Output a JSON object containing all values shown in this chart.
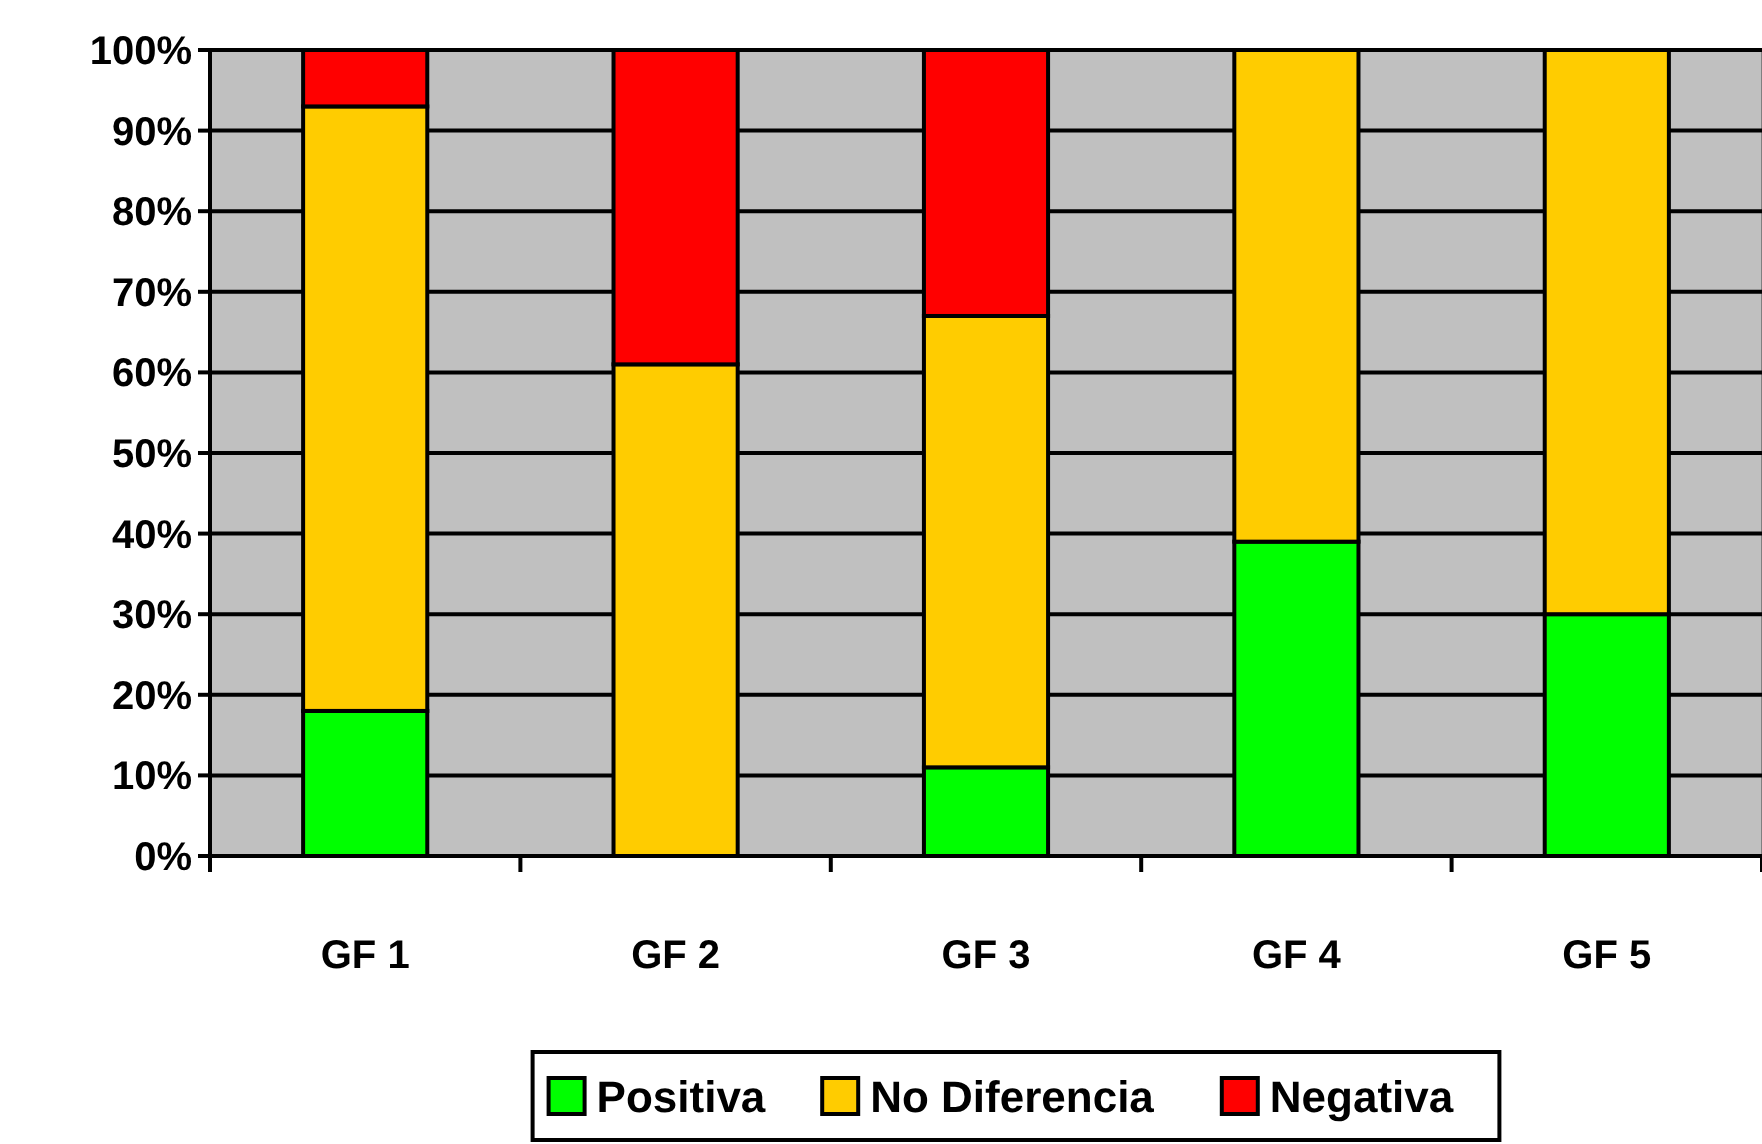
{
  "chart_data": {
    "type": "bar",
    "stacked": true,
    "categories": [
      "GF 1",
      "GF 2",
      "GF 3",
      "GF 4",
      "GF 5"
    ],
    "series": [
      {
        "name": "Positiva",
        "color": "#00ff00",
        "values": [
          18,
          0,
          11,
          39,
          30
        ]
      },
      {
        "name": "No Diferencia",
        "color": "#ffcc00",
        "values": [
          75,
          61,
          56,
          61,
          70
        ]
      },
      {
        "name": "Negativa",
        "color": "#ff0000",
        "values": [
          7,
          39,
          33,
          0,
          0
        ]
      }
    ],
    "ylim": [
      0,
      100
    ],
    "yticks": [
      {
        "value": 0,
        "label": "0%"
      },
      {
        "value": 10,
        "label": "10%"
      },
      {
        "value": 20,
        "label": "20%"
      },
      {
        "value": 30,
        "label": "30%"
      },
      {
        "value": 40,
        "label": "40%"
      },
      {
        "value": 50,
        "label": "50%"
      },
      {
        "value": 60,
        "label": "60%"
      },
      {
        "value": 70,
        "label": "70%"
      },
      {
        "value": 80,
        "label": "80%"
      },
      {
        "value": 90,
        "label": "90%"
      },
      {
        "value": 100,
        "label": "100%"
      }
    ],
    "grid": "y",
    "legend": "bottom"
  }
}
